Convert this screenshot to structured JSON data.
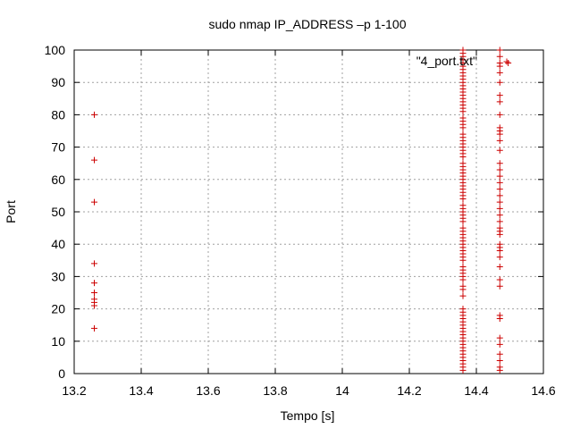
{
  "chart_data": {
    "type": "scatter",
    "title": "sudo nmap IP_ADDRESS –p 1-100",
    "xlabel": "Tempo [s]",
    "ylabel": "Port",
    "xlim": [
      13.2,
      14.6
    ],
    "ylim": [
      0,
      100
    ],
    "xticks": [
      "13.2",
      "13.4",
      "13.6",
      "13.8",
      "14",
      "14.2",
      "14.4",
      "14.6"
    ],
    "yticks": [
      "0",
      "10",
      "20",
      "30",
      "40",
      "50",
      "60",
      "70",
      "80",
      "90",
      "100"
    ],
    "grid": true,
    "legend_position": "top-right",
    "marker": "+",
    "color": "#cc0000",
    "series": [
      {
        "name": "\"4_port.txt\"",
        "points": [
          [
            13.26,
            80
          ],
          [
            13.26,
            66
          ],
          [
            13.26,
            53
          ],
          [
            13.26,
            34
          ],
          [
            13.26,
            28
          ],
          [
            13.26,
            25
          ],
          [
            13.26,
            23
          ],
          [
            13.26,
            22
          ],
          [
            13.26,
            21
          ],
          [
            13.26,
            14
          ],
          [
            14.36,
            1
          ],
          [
            14.36,
            2
          ],
          [
            14.36,
            3
          ],
          [
            14.36,
            4
          ],
          [
            14.36,
            5
          ],
          [
            14.36,
            6
          ],
          [
            14.36,
            7
          ],
          [
            14.36,
            8
          ],
          [
            14.36,
            9
          ],
          [
            14.36,
            10
          ],
          [
            14.36,
            11
          ],
          [
            14.36,
            12
          ],
          [
            14.36,
            13
          ],
          [
            14.36,
            14
          ],
          [
            14.36,
            15
          ],
          [
            14.36,
            16
          ],
          [
            14.36,
            17
          ],
          [
            14.36,
            18
          ],
          [
            14.36,
            19
          ],
          [
            14.36,
            20
          ],
          [
            14.36,
            24
          ],
          [
            14.36,
            26
          ],
          [
            14.36,
            27
          ],
          [
            14.36,
            29
          ],
          [
            14.36,
            30
          ],
          [
            14.36,
            31
          ],
          [
            14.36,
            32
          ],
          [
            14.36,
            33
          ],
          [
            14.36,
            35
          ],
          [
            14.36,
            36
          ],
          [
            14.36,
            37
          ],
          [
            14.36,
            38
          ],
          [
            14.36,
            39
          ],
          [
            14.36,
            40
          ],
          [
            14.36,
            41
          ],
          [
            14.36,
            42
          ],
          [
            14.36,
            43
          ],
          [
            14.36,
            44
          ],
          [
            14.36,
            45
          ],
          [
            14.36,
            47
          ],
          [
            14.36,
            48
          ],
          [
            14.36,
            49
          ],
          [
            14.36,
            50
          ],
          [
            14.36,
            51
          ],
          [
            14.36,
            52
          ],
          [
            14.36,
            54
          ],
          [
            14.36,
            55
          ],
          [
            14.36,
            56
          ],
          [
            14.36,
            57
          ],
          [
            14.36,
            58
          ],
          [
            14.36,
            59
          ],
          [
            14.36,
            60
          ],
          [
            14.36,
            61
          ],
          [
            14.36,
            62
          ],
          [
            14.36,
            63
          ],
          [
            14.36,
            64
          ],
          [
            14.36,
            65
          ],
          [
            14.36,
            67
          ],
          [
            14.36,
            68
          ],
          [
            14.36,
            69
          ],
          [
            14.36,
            70
          ],
          [
            14.36,
            71
          ],
          [
            14.36,
            72
          ],
          [
            14.36,
            73
          ],
          [
            14.36,
            74
          ],
          [
            14.36,
            76
          ],
          [
            14.36,
            77
          ],
          [
            14.36,
            78
          ],
          [
            14.36,
            79
          ],
          [
            14.36,
            81
          ],
          [
            14.36,
            82
          ],
          [
            14.36,
            83
          ],
          [
            14.36,
            84
          ],
          [
            14.36,
            85
          ],
          [
            14.36,
            86
          ],
          [
            14.36,
            87
          ],
          [
            14.36,
            88
          ],
          [
            14.36,
            89
          ],
          [
            14.36,
            90
          ],
          [
            14.36,
            91
          ],
          [
            14.36,
            92
          ],
          [
            14.36,
            93
          ],
          [
            14.36,
            94
          ],
          [
            14.36,
            95
          ],
          [
            14.36,
            96
          ],
          [
            14.36,
            97
          ],
          [
            14.36,
            98
          ],
          [
            14.36,
            99
          ],
          [
            14.36,
            100
          ],
          [
            14.47,
            1
          ],
          [
            14.47,
            2
          ],
          [
            14.47,
            4
          ],
          [
            14.47,
            6
          ],
          [
            14.47,
            9
          ],
          [
            14.47,
            11
          ],
          [
            14.47,
            17
          ],
          [
            14.47,
            18
          ],
          [
            14.47,
            27
          ],
          [
            14.47,
            29
          ],
          [
            14.47,
            33
          ],
          [
            14.47,
            36
          ],
          [
            14.47,
            38
          ],
          [
            14.47,
            39
          ],
          [
            14.47,
            40
          ],
          [
            14.47,
            43
          ],
          [
            14.47,
            44
          ],
          [
            14.47,
            45
          ],
          [
            14.47,
            47
          ],
          [
            14.47,
            49
          ],
          [
            14.47,
            51
          ],
          [
            14.47,
            53
          ],
          [
            14.47,
            55
          ],
          [
            14.47,
            57
          ],
          [
            14.47,
            59
          ],
          [
            14.47,
            61
          ],
          [
            14.47,
            63
          ],
          [
            14.47,
            65
          ],
          [
            14.47,
            69
          ],
          [
            14.47,
            72
          ],
          [
            14.47,
            74
          ],
          [
            14.47,
            75
          ],
          [
            14.47,
            76
          ],
          [
            14.47,
            80
          ],
          [
            14.47,
            84
          ],
          [
            14.47,
            86
          ],
          [
            14.47,
            90
          ],
          [
            14.47,
            93
          ],
          [
            14.47,
            95
          ],
          [
            14.47,
            96
          ],
          [
            14.47,
            98
          ],
          [
            14.47,
            100
          ],
          [
            14.495,
            96
          ]
        ]
      }
    ]
  }
}
